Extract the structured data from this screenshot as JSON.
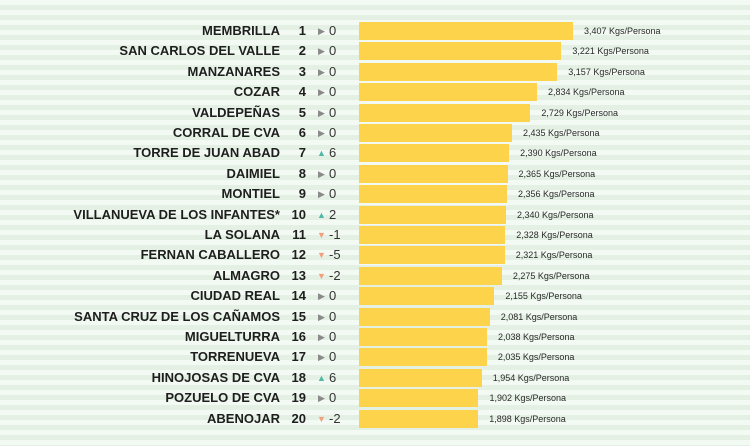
{
  "chart_data": {
    "type": "bar",
    "orientation": "horizontal",
    "unit": "Kgs/Persona",
    "colors": {
      "bar": "#fdd34c",
      "up": "#4fb8a6",
      "down": "#f2a07c",
      "flat": "#8a8a8a"
    },
    "rows": [
      {
        "name": "MEMBRILLA",
        "rank": "1",
        "direction": "flat",
        "change": "0",
        "value": 3407,
        "label": "3,407 Kgs/Persona"
      },
      {
        "name": "SAN CARLOS DEL VALLE",
        "rank": "2",
        "direction": "flat",
        "change": "0",
        "value": 3221,
        "label": "3,221 Kgs/Persona"
      },
      {
        "name": "MANZANARES",
        "rank": "3",
        "direction": "flat",
        "change": "0",
        "value": 3157,
        "label": "3,157 Kgs/Persona"
      },
      {
        "name": "COZAR",
        "rank": "4",
        "direction": "flat",
        "change": "0",
        "value": 2834,
        "label": "2,834 Kgs/Persona"
      },
      {
        "name": "VALDEPEÑAS",
        "rank": "5",
        "direction": "flat",
        "change": "0",
        "value": 2729,
        "label": "2,729 Kgs/Persona"
      },
      {
        "name": "CORRAL DE CVA",
        "rank": "6",
        "direction": "flat",
        "change": "0",
        "value": 2435,
        "label": "2,435 Kgs/Persona"
      },
      {
        "name": "TORRE DE JUAN ABAD",
        "rank": "7",
        "direction": "up",
        "change": "6",
        "value": 2390,
        "label": "2,390 Kgs/Persona"
      },
      {
        "name": "DAIMIEL",
        "rank": "8",
        "direction": "flat",
        "change": "0",
        "value": 2365,
        "label": "2,365 Kgs/Persona"
      },
      {
        "name": "MONTIEL",
        "rank": "9",
        "direction": "flat",
        "change": "0",
        "value": 2356,
        "label": "2,356 Kgs/Persona"
      },
      {
        "name": "VILLANUEVA DE LOS INFANTES*",
        "rank": "10",
        "direction": "up",
        "change": "2",
        "value": 2340,
        "label": "2,340 Kgs/Persona"
      },
      {
        "name": "LA SOLANA",
        "rank": "11",
        "direction": "down",
        "change": "-1",
        "value": 2328,
        "label": "2,328 Kgs/Persona"
      },
      {
        "name": "FERNAN CABALLERO",
        "rank": "12",
        "direction": "down",
        "change": "-5",
        "value": 2321,
        "label": "2,321 Kgs/Persona"
      },
      {
        "name": "ALMAGRO",
        "rank": "13",
        "direction": "down",
        "change": "-2",
        "value": 2275,
        "label": "2,275 Kgs/Persona"
      },
      {
        "name": "CIUDAD REAL",
        "rank": "14",
        "direction": "flat",
        "change": "0",
        "value": 2155,
        "label": "2,155 Kgs/Persona"
      },
      {
        "name": "SANTA CRUZ DE LOS CAÑAMOS",
        "rank": "15",
        "direction": "flat",
        "change": "0",
        "value": 2081,
        "label": "2,081 Kgs/Persona"
      },
      {
        "name": "MIGUELTURRA",
        "rank": "16",
        "direction": "flat",
        "change": "0",
        "value": 2038,
        "label": "2,038 Kgs/Persona"
      },
      {
        "name": "TORRENUEVA",
        "rank": "17",
        "direction": "flat",
        "change": "0",
        "value": 2035,
        "label": "2,035 Kgs/Persona"
      },
      {
        "name": "HINOJOSAS DE CVA",
        "rank": "18",
        "direction": "up",
        "change": "6",
        "value": 1954,
        "label": "1,954 Kgs/Persona"
      },
      {
        "name": "POZUELO DE CVA",
        "rank": "19",
        "direction": "flat",
        "change": "0",
        "value": 1902,
        "label": "1,902 Kgs/Persona"
      },
      {
        "name": "ABENOJAR",
        "rank": "20",
        "direction": "down",
        "change": "-2",
        "value": 1898,
        "label": "1,898 Kgs/Persona"
      }
    ]
  }
}
